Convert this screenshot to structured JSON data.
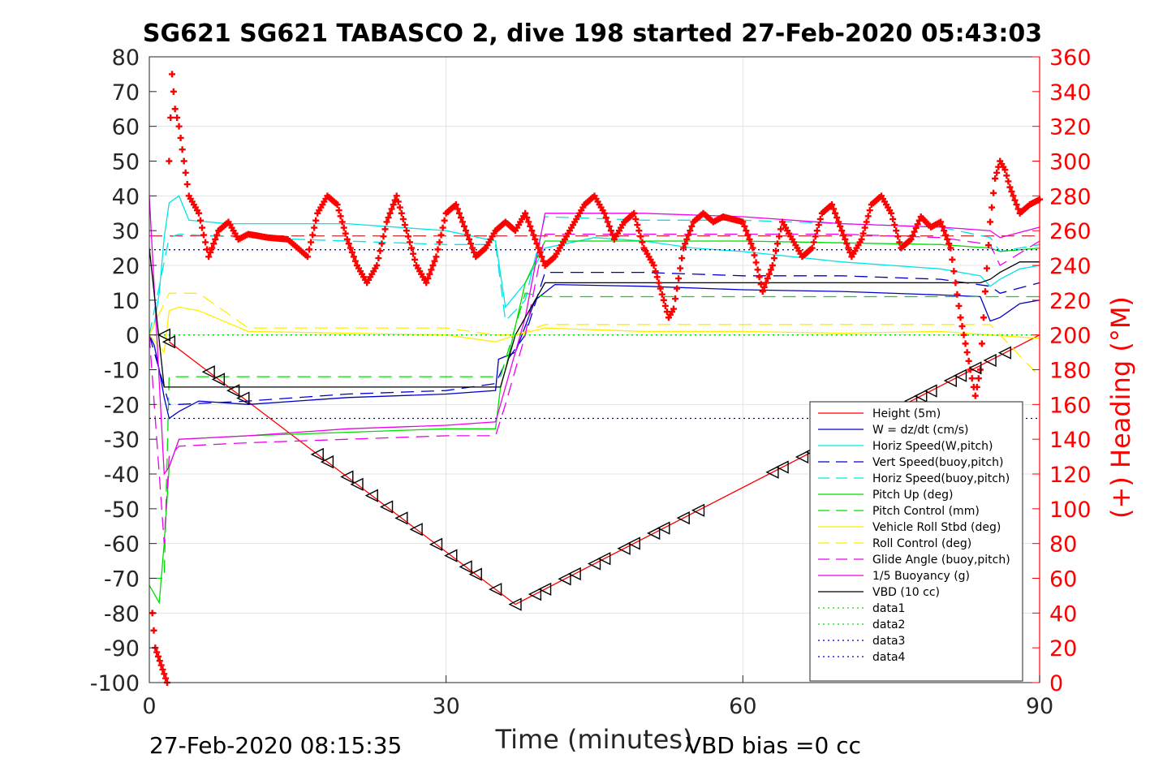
{
  "chart_data": {
    "type": "line",
    "title": "SG621 SG621 TABASCO 2, dive 198 started 27-Feb-2020 05:43:03",
    "xlabel": "Time (minutes)",
    "ylabel_right": "(+) Heading (°M)",
    "xlim": [
      0,
      90
    ],
    "ylim": [
      -100,
      80
    ],
    "ylim_right": [
      0,
      360
    ],
    "x_ticks": [
      "0",
      "30",
      "60",
      "90"
    ],
    "y_ticks": [
      "80",
      "70",
      "60",
      "50",
      "40",
      "30",
      "20",
      "10",
      "0",
      "-10",
      "-20",
      "-30",
      "-40",
      "-50",
      "-60",
      "-70",
      "-80",
      "-90",
      "-100"
    ],
    "y_ticks_right": [
      "360",
      "340",
      "320",
      "300",
      "280",
      "260",
      "240",
      "220",
      "200",
      "180",
      "160",
      "140",
      "120",
      "100",
      "80",
      "60",
      "40",
      "20",
      "0"
    ],
    "grid": true,
    "legend_position": "bottom-right",
    "footer_left": "27-Feb-2020 08:15:35",
    "footer_right": "VBD bias =0 cc",
    "colors": {
      "red": "#ff0000",
      "blue": "#0000cc",
      "cyan": "#00e5e5",
      "green": "#00dd00",
      "yellow": "#ffee00",
      "magenta": "#ee00ee",
      "black": "#000000"
    },
    "series": [
      {
        "name": "Height (5m)",
        "color": "#ff0000",
        "style": "solid",
        "x": [
          2,
          37,
          90
        ],
        "y": [
          -2,
          -77.5,
          0
        ]
      },
      {
        "name": "W = dz/dt (cm/s)",
        "color": "#0000cc",
        "style": "solid",
        "x": [
          0,
          0.5,
          1,
          1.5,
          2,
          3,
          5,
          10,
          20,
          30,
          35,
          35.3,
          37,
          39,
          41,
          50,
          60,
          70,
          80,
          84,
          85,
          86,
          88,
          90
        ],
        "y": [
          0,
          -3,
          -10,
          -18,
          -24,
          -22,
          -19,
          -20,
          -18,
          -17,
          -16,
          -7,
          -5,
          10,
          14.5,
          14,
          13,
          12.5,
          11.5,
          11,
          4,
          5,
          9,
          10
        ]
      },
      {
        "name": "Horiz Speed(W,pitch)",
        "color": "#00e5e5",
        "style": "solid",
        "x": [
          0,
          0.5,
          1,
          1.5,
          2,
          3,
          4,
          8,
          20,
          30,
          35,
          36,
          38,
          40,
          45,
          50,
          55,
          60,
          70,
          80,
          84,
          85,
          86,
          88,
          90
        ],
        "y": [
          0,
          3,
          12,
          28,
          38,
          40,
          33,
          32,
          32,
          30,
          27,
          8,
          15,
          25,
          28,
          27,
          25,
          24,
          21,
          19,
          17,
          14,
          16,
          19,
          20
        ]
      },
      {
        "name": "Vert Speed(buoy,pitch)",
        "color": "#0000cc",
        "style": "dashed",
        "x": [
          0,
          2,
          3,
          10,
          20,
          30,
          35,
          36,
          38,
          40,
          50,
          60,
          70,
          80,
          85,
          86,
          90
        ],
        "y": [
          0,
          -20,
          -20,
          -19,
          -17,
          -16,
          -14,
          -8,
          0,
          18,
          18,
          17,
          17,
          16,
          14,
          12,
          15
        ]
      },
      {
        "name": "Horiz Speed(buoy,pitch)",
        "color": "#00e5e5",
        "style": "dashed",
        "x": [
          0,
          2,
          3,
          10,
          20,
          30,
          35,
          36,
          38,
          40,
          50,
          60,
          70,
          80,
          85,
          86,
          90
        ],
        "y": [
          0,
          28,
          29,
          28,
          27,
          26,
          26,
          4,
          10,
          34,
          33,
          33,
          32,
          31,
          28,
          24,
          26
        ]
      },
      {
        "name": "Pitch Up (deg)",
        "color": "#00dd00",
        "style": "solid",
        "x": [
          0,
          1,
          1.5,
          2,
          3,
          10,
          20,
          30,
          35,
          35.5,
          36,
          38,
          40,
          50,
          60,
          70,
          80,
          85,
          86,
          90
        ],
        "y": [
          -72,
          -77,
          -60,
          -38,
          -30,
          -29,
          -28,
          -27,
          -27,
          -15,
          -10,
          15,
          27,
          27,
          27,
          26.5,
          26,
          25,
          24,
          25
        ]
      },
      {
        "name": "Pitch Control (mm)",
        "color": "#00dd00",
        "style": "dashed",
        "x": [
          0,
          1.5,
          2,
          35,
          35.5,
          38,
          40,
          90
        ],
        "y": [
          -70,
          -70,
          -12,
          -12,
          -12,
          12,
          11,
          11
        ]
      },
      {
        "name": "Vehicle Roll Stbd (deg)",
        "color": "#ffee00",
        "style": "solid",
        "x": [
          0,
          1.5,
          2,
          3,
          5,
          10,
          20,
          30,
          35,
          37,
          40,
          50,
          60,
          70,
          80,
          85,
          90
        ],
        "y": [
          0,
          -5,
          7,
          8,
          7,
          1,
          0.5,
          0,
          -2,
          0,
          2,
          1,
          1,
          0.5,
          1,
          0,
          -1
        ]
      },
      {
        "name": "Roll Control (deg)",
        "color": "#ffee00",
        "style": "dashed",
        "x": [
          0,
          2,
          5,
          10,
          20,
          30,
          35,
          37,
          40,
          50,
          60,
          70,
          80,
          85,
          90
        ],
        "y": [
          0,
          12,
          12,
          2,
          2,
          2,
          0,
          0,
          3,
          3,
          3,
          3,
          3,
          3,
          -12
        ]
      },
      {
        "name": "Glide Angle (buoy,pitch)",
        "color": "#ee00ee",
        "style": "dashed",
        "x": [
          0,
          1.5,
          2,
          3,
          10,
          20,
          30,
          35,
          36,
          38,
          40,
          50,
          60,
          70,
          80,
          85,
          86,
          90
        ],
        "y": [
          0,
          -60,
          -35,
          -32,
          -31,
          -30,
          -29,
          -29,
          -20,
          0,
          29,
          29,
          29,
          29,
          28,
          26,
          20,
          27
        ]
      },
      {
        "name": "1/5 Buoyancy (g)",
        "color": "#ee00ee",
        "style": "solid",
        "x": [
          0,
          1.5,
          2,
          3,
          10,
          20,
          30,
          35,
          36,
          38,
          40,
          50,
          60,
          70,
          80,
          85,
          86,
          90
        ],
        "y": [
          40,
          -40,
          -38,
          -30,
          -29,
          -27,
          -26,
          -25,
          -15,
          5,
          35,
          35,
          34,
          32,
          31,
          30,
          28,
          31
        ]
      },
      {
        "name": "VBD (10 cc)",
        "color": "#000000",
        "style": "solid",
        "x": [
          0,
          1.5,
          2,
          35,
          35.5,
          37,
          40,
          84,
          85,
          86,
          88,
          90
        ],
        "y": [
          25,
          -15,
          -15,
          -15,
          -15,
          0,
          15,
          15,
          16,
          18,
          21,
          21
        ]
      },
      {
        "name": "data1",
        "color": "#00dd00",
        "style": "dotted",
        "x": [
          0,
          90
        ],
        "y": [
          0,
          0
        ]
      },
      {
        "name": "data2",
        "color": "#00dd00",
        "style": "dotted",
        "x": [
          0,
          90
        ],
        "y": [
          0,
          0
        ]
      },
      {
        "name": "data3",
        "color": "#0000cc",
        "style": "dotted",
        "x": [
          0,
          90
        ],
        "y": [
          24.5,
          24.5
        ]
      },
      {
        "name": "data4",
        "color": "#0000cc",
        "style": "dotted",
        "x": [
          0,
          90
        ],
        "y": [
          -24,
          -24
        ]
      }
    ],
    "reference_lines": [
      {
        "color": "#cc3333",
        "style": "dashed",
        "y": 28.5
      }
    ],
    "heading_right_axis": {
      "color": "#ff0000",
      "marker": "+",
      "x": [
        0.3,
        0.6,
        0.9,
        1.2,
        1.5,
        1.8,
        2,
        2.3,
        2.6,
        3,
        3.5,
        4,
        5,
        6,
        7,
        8,
        9,
        10,
        12,
        14,
        16,
        17,
        18,
        19,
        20,
        21,
        22,
        23,
        24,
        25,
        26,
        27,
        28,
        29,
        30,
        31,
        32,
        33,
        34,
        35,
        36,
        37,
        38,
        39,
        40,
        41,
        42,
        43,
        44,
        45,
        46,
        47,
        48,
        49,
        50,
        51,
        52,
        52.5,
        53,
        54,
        55,
        56,
        57,
        58,
        60,
        61,
        62,
        63,
        64,
        65,
        66,
        67,
        68,
        69,
        70,
        71,
        72,
        73,
        74,
        75,
        76,
        77,
        78,
        79,
        80,
        81,
        82,
        83,
        83.5,
        84,
        84.5,
        85,
        85.5,
        86,
        86.5,
        87,
        88,
        89,
        90
      ],
      "y": [
        40,
        20,
        15,
        10,
        5,
        0,
        300,
        350,
        330,
        320,
        300,
        280,
        270,
        245,
        260,
        265,
        255,
        258,
        256,
        255,
        245,
        270,
        280,
        275,
        255,
        240,
        230,
        240,
        265,
        280,
        260,
        240,
        230,
        245,
        270,
        275,
        260,
        245,
        250,
        260,
        265,
        260,
        270,
        255,
        240,
        245,
        255,
        265,
        275,
        280,
        270,
        255,
        265,
        270,
        250,
        240,
        220,
        210,
        215,
        250,
        265,
        270,
        265,
        268,
        265,
        250,
        225,
        240,
        265,
        255,
        245,
        250,
        270,
        275,
        260,
        245,
        255,
        275,
        280,
        270,
        250,
        255,
        268,
        262,
        265,
        250,
        210,
        180,
        165,
        180,
        225,
        265,
        290,
        300,
        295,
        285,
        270,
        275,
        278
      ]
    },
    "triangle_markers": {
      "color": "#000000",
      "x": [
        1.5,
        2,
        6,
        7,
        8.5,
        9.5,
        17,
        18,
        20,
        21,
        22.5,
        24,
        25.5,
        27,
        29,
        30.5,
        32,
        33,
        35,
        37,
        39,
        40,
        42,
        43,
        45,
        46,
        48,
        49,
        51,
        52,
        54,
        55.5,
        63,
        64,
        66,
        67,
        68,
        69.5,
        71,
        72,
        74,
        75.5,
        77,
        78,
        79,
        81,
        82,
        83.5,
        85,
        86.5
      ]
    }
  }
}
